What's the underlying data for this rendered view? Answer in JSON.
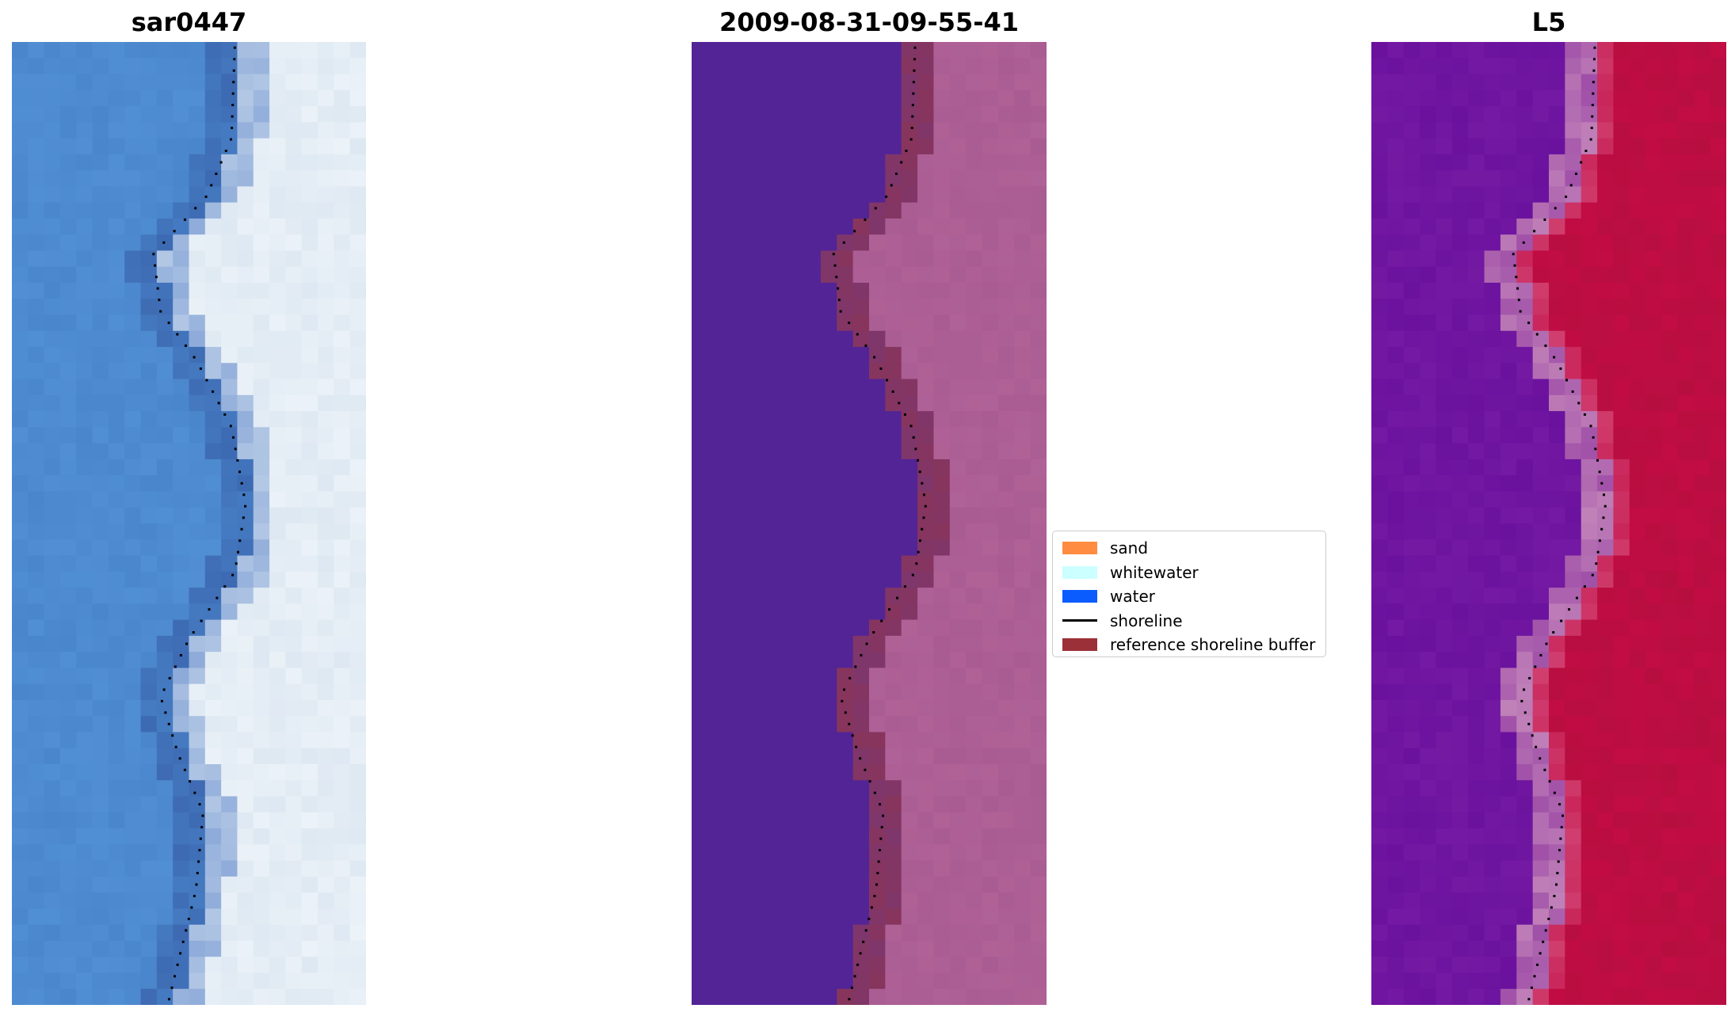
{
  "panels": [
    {
      "title": "sar0447",
      "scheme": "rgb"
    },
    {
      "title": "2009-08-31-09-55-41",
      "scheme": "classified"
    },
    {
      "title": "L5",
      "scheme": "index"
    }
  ],
  "legend": {
    "items": [
      {
        "label": "sand",
        "color": "#ff8c40",
        "kind": "patch"
      },
      {
        "label": "whitewater",
        "color": "#ccffff",
        "kind": "patch"
      },
      {
        "label": "water",
        "color": "#0a5cff",
        "kind": "patch"
      },
      {
        "label": "shoreline",
        "color": "#000000",
        "kind": "line"
      },
      {
        "label": "reference shoreline buffer",
        "color": "#9c3038",
        "kind": "patch"
      }
    ]
  },
  "colors": {
    "water_rgb": "#4a86cc",
    "beach_rgb": "#dde8f2",
    "water_class": "#532496",
    "sand_class": "#a85c92",
    "buffer": "#9c3038",
    "index_low": "#6a119e",
    "index_high": "#c20c44"
  }
}
